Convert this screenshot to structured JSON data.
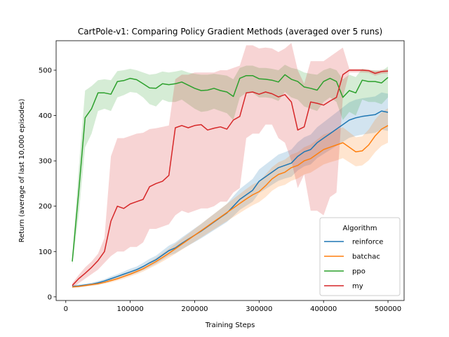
{
  "chart_data": {
    "type": "line",
    "title": "CartPole-v1: Comparing Policy Gradient Methods (averaged over 5 runs)",
    "xlabel": "Training Steps",
    "ylabel": "Return (average of last 10,000 episodes)",
    "xlim": [
      -15000,
      525000
    ],
    "ylim": [
      -8,
      565
    ],
    "xticks": [
      0,
      100000,
      200000,
      300000,
      400000,
      500000
    ],
    "xtick_labels": [
      "0",
      "100000",
      "200000",
      "300000",
      "400000",
      "500000"
    ],
    "yticks": [
      0,
      100,
      200,
      300,
      400,
      500
    ],
    "ytick_labels": [
      "0",
      "100",
      "200",
      "300",
      "400",
      "500"
    ],
    "grid": false,
    "legend": {
      "title": "Algorithm",
      "placement": "lower right"
    },
    "x": [
      10000,
      20000,
      30000,
      40000,
      50000,
      60000,
      70000,
      80000,
      90000,
      100000,
      110000,
      120000,
      130000,
      140000,
      150000,
      160000,
      170000,
      180000,
      190000,
      200000,
      210000,
      220000,
      230000,
      240000,
      250000,
      260000,
      270000,
      280000,
      290000,
      300000,
      310000,
      320000,
      330000,
      340000,
      350000,
      360000,
      370000,
      380000,
      390000,
      400000,
      410000,
      420000,
      430000,
      440000,
      450000,
      460000,
      470000,
      480000,
      490000,
      500000
    ],
    "series": [
      {
        "name": "reinforce",
        "color": "#1f77b4",
        "values": [
          23,
          24,
          26,
          28,
          31,
          35,
          40,
          45,
          50,
          55,
          60,
          67,
          75,
          82,
          92,
          102,
          108,
          118,
          127,
          136,
          145,
          155,
          165,
          175,
          185,
          200,
          215,
          225,
          235,
          255,
          265,
          275,
          285,
          290,
          295,
          310,
          320,
          325,
          340,
          350,
          360,
          370,
          380,
          390,
          395,
          398,
          400,
          402,
          410,
          407
        ],
        "lower": [
          20,
          21,
          23,
          25,
          27,
          31,
          35,
          40,
          44,
          48,
          53,
          59,
          66,
          73,
          82,
          91,
          96,
          105,
          113,
          121,
          129,
          138,
          147,
          156,
          165,
          178,
          192,
          201,
          210,
          229,
          238,
          247,
          256,
          261,
          265,
          279,
          288,
          292,
          306,
          315,
          324,
          333,
          342,
          351,
          355,
          358,
          360,
          362,
          369,
          366
        ],
        "upper": [
          26,
          27,
          29,
          31,
          35,
          39,
          45,
          50,
          56,
          62,
          67,
          75,
          84,
          91,
          102,
          113,
          120,
          131,
          141,
          151,
          161,
          172,
          183,
          194,
          205,
          222,
          238,
          249,
          260,
          281,
          292,
          303,
          314,
          319,
          325,
          341,
          352,
          358,
          374,
          385,
          396,
          407,
          418,
          429,
          435,
          438,
          440,
          442,
          451,
          448
        ]
      },
      {
        "name": "batchac",
        "color": "#ff7f0e",
        "values": [
          22,
          23,
          25,
          27,
          29,
          32,
          36,
          40,
          45,
          50,
          56,
          62,
          70,
          78,
          87,
          96,
          106,
          116,
          126,
          136,
          146,
          156,
          166,
          176,
          186,
          196,
          206,
          216,
          225,
          232,
          245,
          260,
          270,
          275,
          285,
          290,
          300,
          305,
          315,
          325,
          330,
          335,
          340,
          330,
          320,
          322,
          335,
          355,
          370,
          378
        ],
        "lower": [
          20,
          21,
          23,
          24,
          26,
          29,
          32,
          36,
          40,
          45,
          50,
          56,
          63,
          70,
          78,
          86,
          95,
          104,
          113,
          122,
          131,
          140,
          149,
          158,
          167,
          176,
          185,
          194,
          202,
          209,
          220,
          234,
          243,
          247,
          256,
          261,
          270,
          274,
          283,
          292,
          297,
          301,
          306,
          297,
          288,
          290,
          301,
          319,
          333,
          340
        ],
        "upper": [
          24,
          25,
          27,
          30,
          32,
          35,
          40,
          44,
          50,
          55,
          62,
          68,
          77,
          86,
          96,
          106,
          117,
          128,
          139,
          150,
          161,
          172,
          183,
          194,
          205,
          216,
          227,
          238,
          248,
          255,
          270,
          286,
          297,
          303,
          314,
          319,
          330,
          336,
          347,
          358,
          363,
          369,
          374,
          363,
          352,
          354,
          369,
          391,
          407,
          416
        ]
      },
      {
        "name": "ppo",
        "color": "#2ca02c",
        "values": [
          78,
          230,
          395,
          415,
          450,
          450,
          447,
          475,
          477,
          482,
          479,
          470,
          461,
          460,
          470,
          468,
          470,
          474,
          467,
          460,
          455,
          456,
          460,
          455,
          452,
          442,
          482,
          488,
          488,
          481,
          480,
          478,
          474,
          490,
          480,
          475,
          463,
          460,
          456,
          475,
          482,
          475,
          440,
          455,
          450,
          478,
          475,
          475,
          472,
          484
        ],
        "lower": [
          70,
          180,
          330,
          360,
          410,
          415,
          410,
          440,
          445,
          452,
          450,
          440,
          425,
          420,
          435,
          430,
          430,
          435,
          425,
          415,
          408,
          410,
          415,
          410,
          405,
          390,
          440,
          450,
          450,
          440,
          440,
          438,
          432,
          452,
          440,
          435,
          420,
          415,
          410,
          430,
          440,
          430,
          390,
          408,
          400,
          435,
          430,
          430,
          425,
          440
        ],
        "upper": [
          86,
          280,
          455,
          465,
          478,
          480,
          478,
          498,
          500,
          503,
          500,
          495,
          490,
          492,
          497,
          495,
          497,
          500,
          495,
          492,
          490,
          490,
          492,
          490,
          488,
          480,
          505,
          510,
          510,
          505,
          505,
          503,
          500,
          512,
          505,
          502,
          495,
          492,
          490,
          500,
          505,
          500,
          480,
          490,
          485,
          503,
          500,
          500,
          498,
          508
        ]
      },
      {
        "name": "my",
        "color": "#d62728",
        "values": [
          25,
          40,
          52,
          65,
          80,
          100,
          167,
          200,
          195,
          205,
          210,
          215,
          243,
          250,
          255,
          268,
          373,
          378,
          373,
          378,
          380,
          368,
          372,
          375,
          370,
          390,
          398,
          450,
          452,
          447,
          452,
          448,
          441,
          446,
          430,
          368,
          375,
          430,
          427,
          423,
          432,
          440,
          490,
          500,
          500,
          500,
          499,
          493,
          497,
          498
        ],
        "lower": [
          20,
          30,
          40,
          50,
          60,
          75,
          90,
          100,
          100,
          110,
          110,
          120,
          150,
          150,
          155,
          160,
          180,
          190,
          185,
          190,
          195,
          195,
          200,
          210,
          210,
          230,
          240,
          350,
          360,
          360,
          380,
          380,
          350,
          340,
          300,
          240,
          270,
          190,
          190,
          180,
          220,
          230,
          440,
          495,
          495,
          495,
          494,
          488,
          492,
          493
        ],
        "upper": [
          30,
          48,
          65,
          78,
          95,
          130,
          310,
          350,
          350,
          355,
          360,
          362,
          370,
          372,
          375,
          378,
          480,
          490,
          490,
          495,
          495,
          495,
          495,
          500,
          500,
          505,
          510,
          555,
          555,
          548,
          550,
          548,
          540,
          548,
          560,
          500,
          470,
          520,
          520,
          520,
          530,
          540,
          550,
          503,
          503,
          503,
          502,
          498,
          501,
          502
        ]
      }
    ]
  }
}
